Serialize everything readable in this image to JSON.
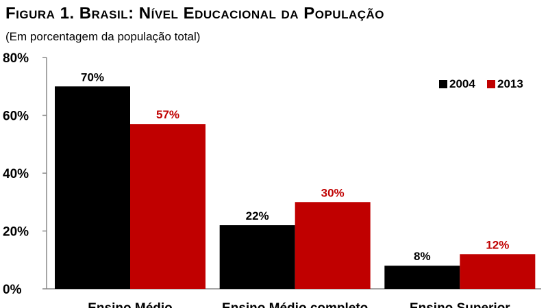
{
  "title": "Figura 1. Brasil: Nível Educacional da População",
  "subtitle": "(Em porcentagem da população total)",
  "chart_data": {
    "type": "bar",
    "categories": [
      "Ensino Médio",
      "Ensino Médio completo",
      "Ensino Superior"
    ],
    "series": [
      {
        "name": "2004",
        "values": [
          70,
          22,
          8
        ],
        "labels": [
          "70%",
          "22%",
          "8%"
        ],
        "color": "#000000",
        "label_color": "#000000"
      },
      {
        "name": "2013",
        "values": [
          57,
          30,
          12
        ],
        "labels": [
          "57%",
          "30%",
          "12%"
        ],
        "color": "#c00000",
        "label_color": "#c00000"
      }
    ],
    "ylim": [
      0,
      80
    ],
    "yticks": [
      0,
      20,
      40,
      60,
      80
    ],
    "ytick_labels": [
      "0%",
      "20%",
      "40%",
      "60%",
      "80%"
    ],
    "legend_position": "top-right",
    "grid": false
  }
}
